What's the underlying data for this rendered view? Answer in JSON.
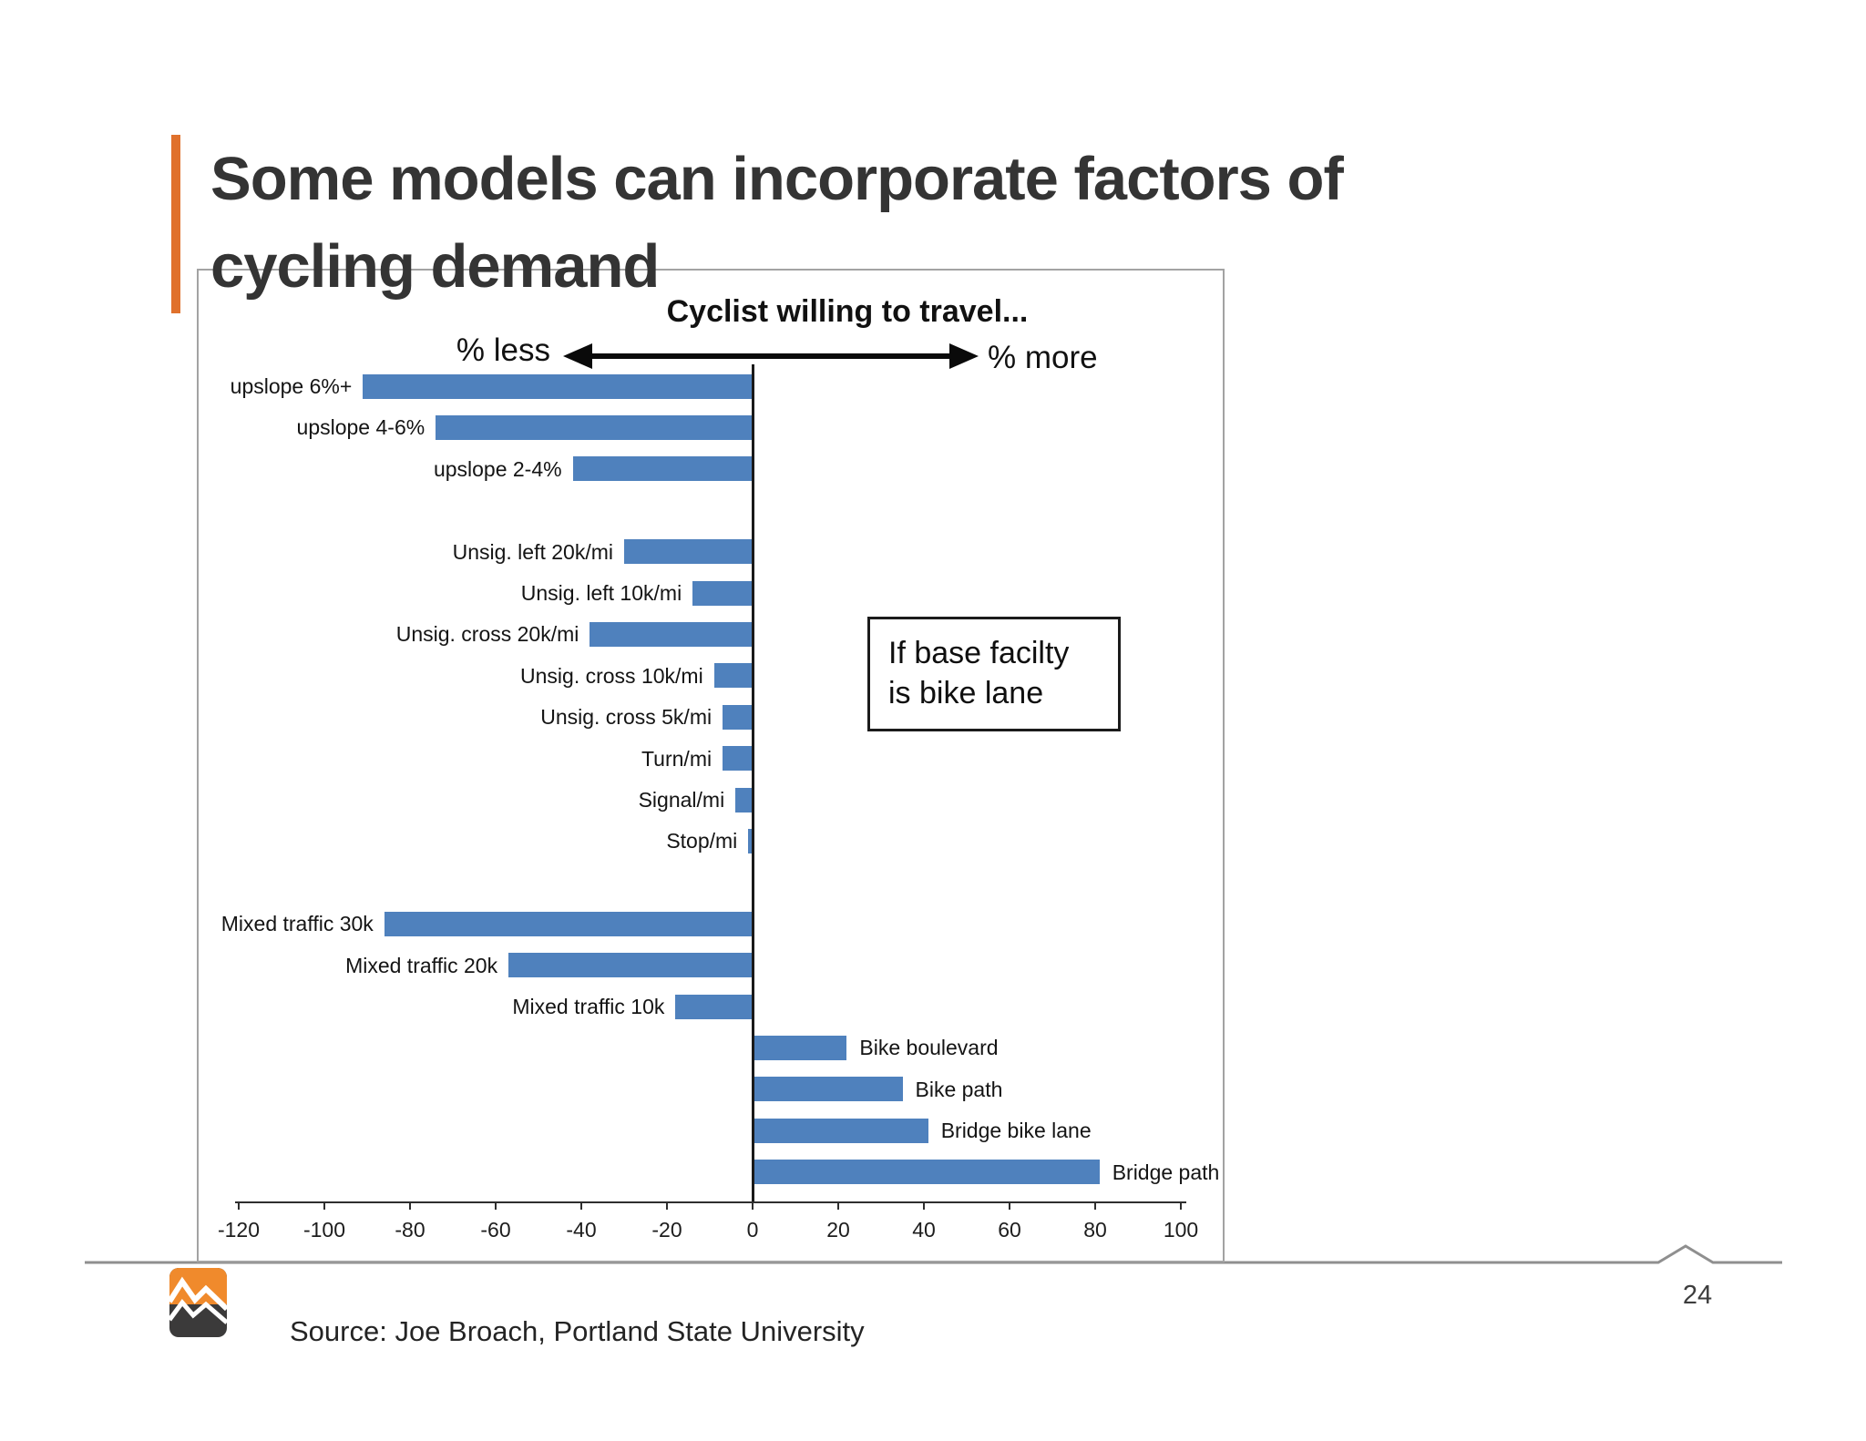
{
  "slide": {
    "title_line1": "Some models can incorporate factors of",
    "title_line2": "cycling demand",
    "source": "Source: Joe Broach, Portland State University",
    "page_number": "24"
  },
  "chart_data": {
    "type": "bar",
    "orientation": "horizontal",
    "title": "Cyclist willing to travel...",
    "left_label": "% less",
    "right_label": "% more",
    "xlim": [
      -120,
      100
    ],
    "x_ticks": [
      -120,
      -100,
      -80,
      -60,
      -40,
      -20,
      0,
      20,
      40,
      60,
      80,
      100
    ],
    "grid": false,
    "legend": "none",
    "bar_color": "#4F81BD",
    "items": [
      {
        "label": "upslope 6%+",
        "value": -91
      },
      {
        "label": "upslope 4-6%",
        "value": -74
      },
      {
        "label": "upslope 2-4%",
        "value": -42
      },
      {
        "label": "Unsig. left 20k/mi",
        "value": -30
      },
      {
        "label": "Unsig. left 10k/mi",
        "value": -14
      },
      {
        "label": "Unsig. cross 20k/mi",
        "value": -38
      },
      {
        "label": "Unsig. cross 10k/mi",
        "value": -9
      },
      {
        "label": "Unsig. cross 5k/mi",
        "value": -7
      },
      {
        "label": "Turn/mi",
        "value": -7
      },
      {
        "label": "Signal/mi",
        "value": -4
      },
      {
        "label": "Stop/mi",
        "value": -1
      },
      {
        "label": "Mixed traffic 30k",
        "value": -86
      },
      {
        "label": "Mixed traffic 20k",
        "value": -57
      },
      {
        "label": "Mixed traffic 10k",
        "value": -18
      },
      {
        "label": "Bike boulevard",
        "value": 22
      },
      {
        "label": "Bike path",
        "value": 35
      },
      {
        "label": "Bridge bike lane",
        "value": 41
      },
      {
        "label": "Bridge path",
        "value": 81
      }
    ],
    "row_gaps_after": [
      "upslope 2-4%",
      "Stop/mi"
    ],
    "annotation": {
      "line1": "If base facilty",
      "line2": "is bike lane"
    }
  },
  "colors": {
    "accent_orange": "#E0712C",
    "bar_blue": "#4F81BD",
    "chart_border_gray": "#A3A3A3",
    "divider_gray": "#8F8F8F",
    "logo_orange": "#F08A2C",
    "logo_dark": "#3B3A3A"
  }
}
